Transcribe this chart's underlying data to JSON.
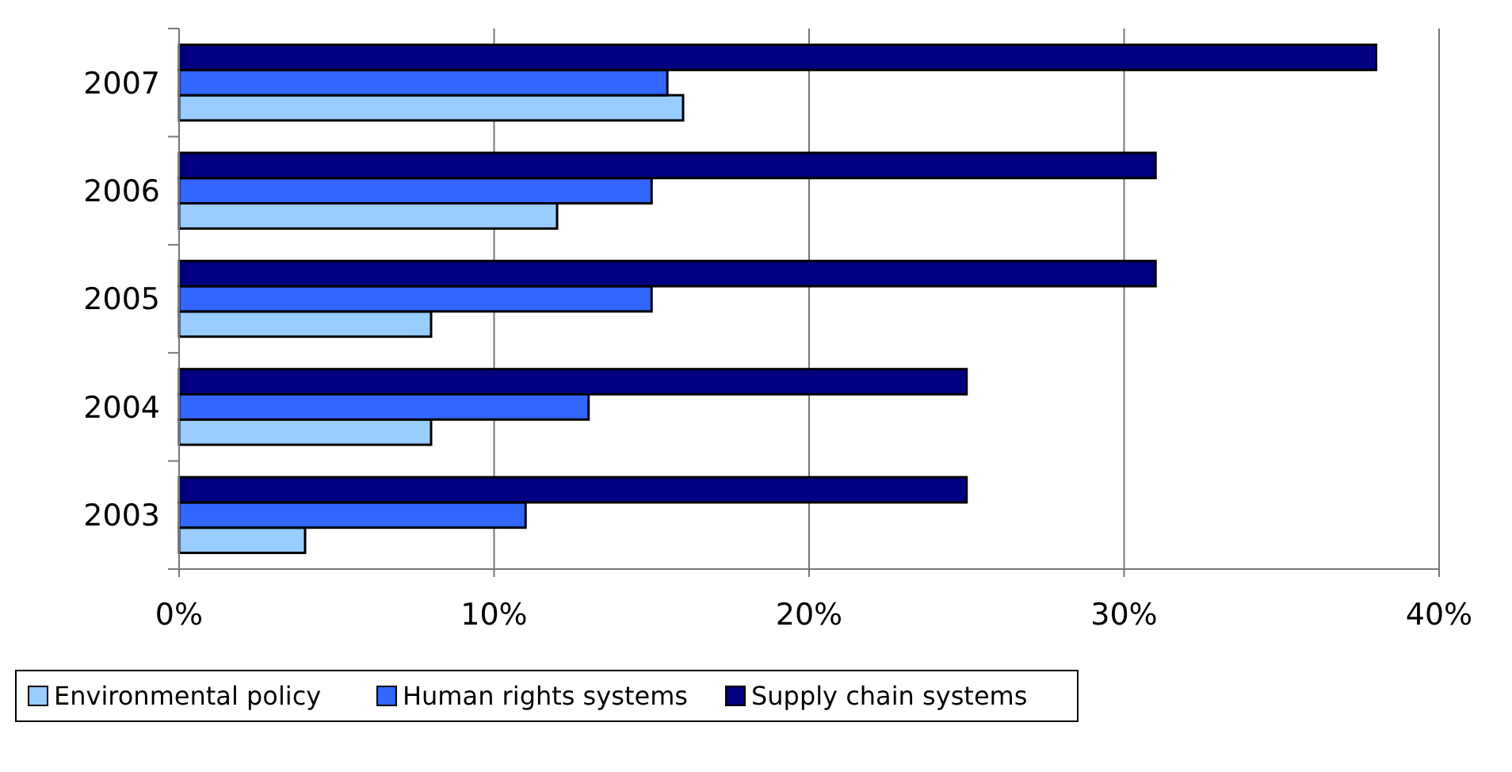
{
  "chart_data": {
    "type": "bar",
    "orientation": "horizontal",
    "categories": [
      "2007",
      "2006",
      "2005",
      "2004",
      "2003"
    ],
    "series": [
      {
        "name": "Environmental policy",
        "color": "#99ccff",
        "values": [
          16,
          12,
          8,
          8,
          4
        ]
      },
      {
        "name": "Human rights systems",
        "color": "#3366ff",
        "values": [
          15.5,
          15,
          15,
          13,
          11
        ]
      },
      {
        "name": "Supply chain systems",
        "color": "#000080",
        "values": [
          38,
          31,
          31,
          25,
          25
        ]
      }
    ],
    "xlim": [
      0,
      40
    ],
    "xticks": [
      {
        "value": 0,
        "label": "0%"
      },
      {
        "value": 10,
        "label": "10%"
      },
      {
        "value": 20,
        "label": "20%"
      },
      {
        "value": 30,
        "label": "30%"
      },
      {
        "value": 40,
        "label": "40%"
      }
    ],
    "grid": "x",
    "legend": "bottom"
  }
}
